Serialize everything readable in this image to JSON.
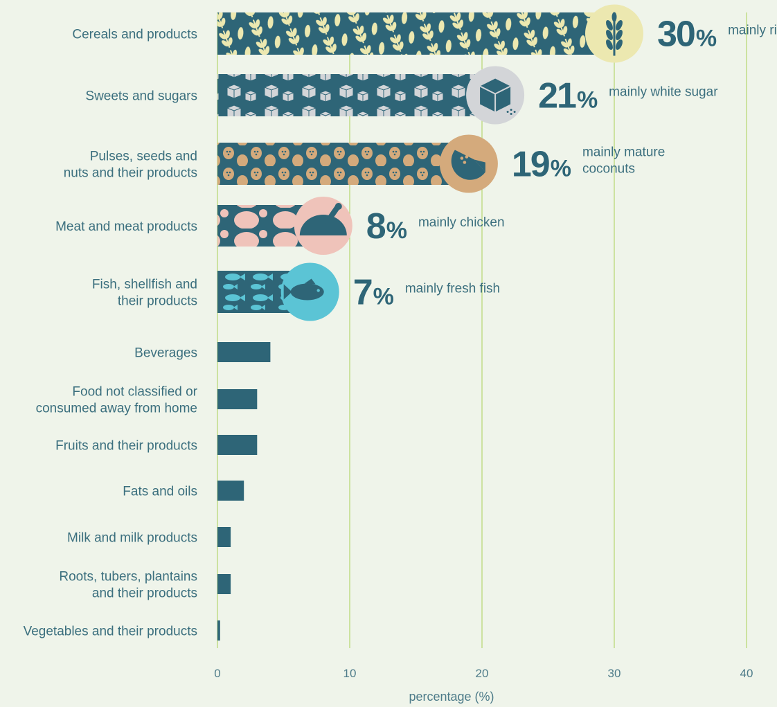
{
  "chart_data": {
    "type": "bar",
    "orientation": "horizontal",
    "xlabel": "percentage (%)",
    "xlim": [
      0,
      40
    ],
    "xticks": [
      0,
      10,
      20,
      30,
      40
    ],
    "grid": true,
    "colors": {
      "bar": "#2e6577",
      "gridline": "#a9cf55",
      "background": "#eff4ea",
      "text": "#3b6f7e"
    },
    "categories": [
      {
        "label": [
          "Cereals and products"
        ],
        "value": 30,
        "big": "30",
        "note": [
          "mainly rice"
        ],
        "badge_color": "#ece8b0",
        "pattern": "wheat-pattern",
        "icon": "wheat-icon"
      },
      {
        "label": [
          "Sweets and sugars"
        ],
        "value": 21,
        "big": "21",
        "note": [
          "mainly white sugar"
        ],
        "badge_color": "#d3d5d8",
        "pattern": "sugar-cube-pattern",
        "icon": "sugar-cube-icon"
      },
      {
        "label": [
          "Pulses, seeds and",
          "nuts and their products"
        ],
        "value": 19,
        "big": "19",
        "note": [
          "mainly mature",
          "coconuts"
        ],
        "badge_color": "#d4aa7c",
        "pattern": "nut-pattern",
        "icon": "coconut-icon"
      },
      {
        "label": [
          "Meat and meat products"
        ],
        "value": 8,
        "big": "8",
        "note": [
          "mainly chicken"
        ],
        "badge_color": "#efc3ba",
        "pattern": "chicken-pattern",
        "icon": "chicken-icon"
      },
      {
        "label": [
          "Fish, shellfish and",
          "their products"
        ],
        "value": 7,
        "big": "7",
        "note": [
          "mainly fresh fish"
        ],
        "badge_color": "#5bc4d5",
        "pattern": "fish-pattern",
        "icon": "fish-icon"
      },
      {
        "label": [
          "Beverages"
        ],
        "value": 4
      },
      {
        "label": [
          "Food not classified or",
          "consumed away from home"
        ],
        "value": 3
      },
      {
        "label": [
          "Fruits and their products"
        ],
        "value": 3
      },
      {
        "label": [
          "Fats and oils"
        ],
        "value": 2
      },
      {
        "label": [
          "Milk and milk products"
        ],
        "value": 1
      },
      {
        "label": [
          "Roots, tubers, plantains",
          "and their products"
        ],
        "value": 1
      },
      {
        "label": [
          "Vegetables and their products"
        ],
        "value": 0.2
      }
    ],
    "percent_sign": "%"
  }
}
